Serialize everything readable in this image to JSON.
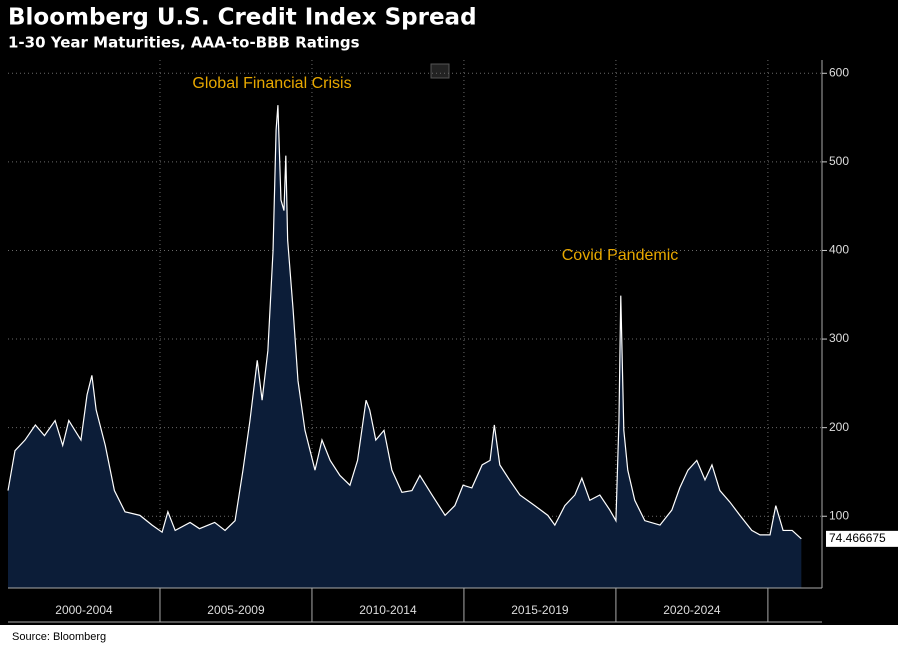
{
  "chart_data": {
    "type": "area",
    "title": "Bloomberg U.S. Credit Index Spread",
    "subtitle": "1-30 Year Maturities, AAA-to-BBB Ratings",
    "annotations": [
      "Global Financial Crisis",
      "Covid Pandemic"
    ],
    "source": "Source: Bloomberg",
    "x": [
      2000.0,
      2000.23,
      2000.56,
      2000.9,
      2001.2,
      2001.55,
      2001.8,
      2002.0,
      2002.4,
      2002.6,
      2002.76,
      2002.9,
      2003.2,
      2003.5,
      2003.85,
      2004.34,
      2004.74,
      2005.07,
      2005.26,
      2005.5,
      2005.99,
      2006.3,
      2006.8,
      2007.14,
      2007.47,
      2007.73,
      2007.96,
      2008.2,
      2008.36,
      2008.55,
      2008.72,
      2008.82,
      2008.88,
      2008.98,
      2009.08,
      2009.14,
      2009.2,
      2009.38,
      2009.54,
      2009.77,
      2010.1,
      2010.33,
      2010.6,
      2010.92,
      2011.25,
      2011.5,
      2011.78,
      2011.9,
      2012.1,
      2012.37,
      2012.63,
      2012.96,
      2013.29,
      2013.55,
      2013.95,
      2014.38,
      2014.7,
      2014.97,
      2015.26,
      2015.6,
      2015.86,
      2016.0,
      2016.18,
      2016.5,
      2016.84,
      2017.33,
      2017.76,
      2017.99,
      2018.32,
      2018.65,
      2018.88,
      2019.14,
      2019.47,
      2019.8,
      2020.0,
      2020.1,
      2020.16,
      2020.26,
      2020.39,
      2020.62,
      2020.95,
      2021.45,
      2021.84,
      2022.1,
      2022.37,
      2022.66,
      2022.93,
      2023.16,
      2023.42,
      2023.75,
      2024.08,
      2024.47,
      2024.74,
      2025.07,
      2025.26,
      2025.5,
      2025.8,
      2026.1
    ],
    "values": [
      129,
      174,
      186,
      203,
      191,
      208,
      180,
      208,
      186,
      237,
      259,
      220,
      180,
      129,
      105,
      101,
      90,
      82,
      105,
      84,
      93,
      86,
      93,
      84,
      95,
      152,
      208,
      276,
      231,
      287,
      400,
      536,
      564,
      457,
      445,
      507,
      412,
      333,
      253,
      197,
      152,
      186,
      163,
      146,
      135,
      163,
      231,
      220,
      186,
      197,
      152,
      127,
      129,
      146,
      124,
      101,
      112,
      135,
      132,
      158,
      163,
      203,
      158,
      141,
      124,
      112,
      101,
      90,
      112,
      124,
      143,
      118,
      124,
      107,
      95,
      208,
      349,
      197,
      152,
      118,
      95,
      90,
      107,
      132,
      152,
      163,
      141,
      158,
      129,
      116,
      101,
      84,
      79,
      79,
      112,
      84,
      84,
      74.466675
    ],
    "last_value_label": "74.466675",
    "color": "#0c1d38",
    "line_color": "#ffffff",
    "xlim": [
      2000,
      2026.78
    ],
    "ylim": [
      19,
      615
    ],
    "yticks": [
      100,
      200,
      300,
      400,
      500,
      600
    ],
    "xticks": [
      {
        "value": 2002.5,
        "label": "2000-2004"
      },
      {
        "value": 2007.5,
        "label": "2005-2009"
      },
      {
        "value": 2012.5,
        "label": "2010-2014"
      },
      {
        "value": 2017.5,
        "label": "2015-2019"
      },
      {
        "value": 2022.5,
        "label": "2020-2024"
      }
    ],
    "xgrid": [
      2005,
      2010,
      2015,
      2020,
      2025
    ],
    "grid": true
  }
}
